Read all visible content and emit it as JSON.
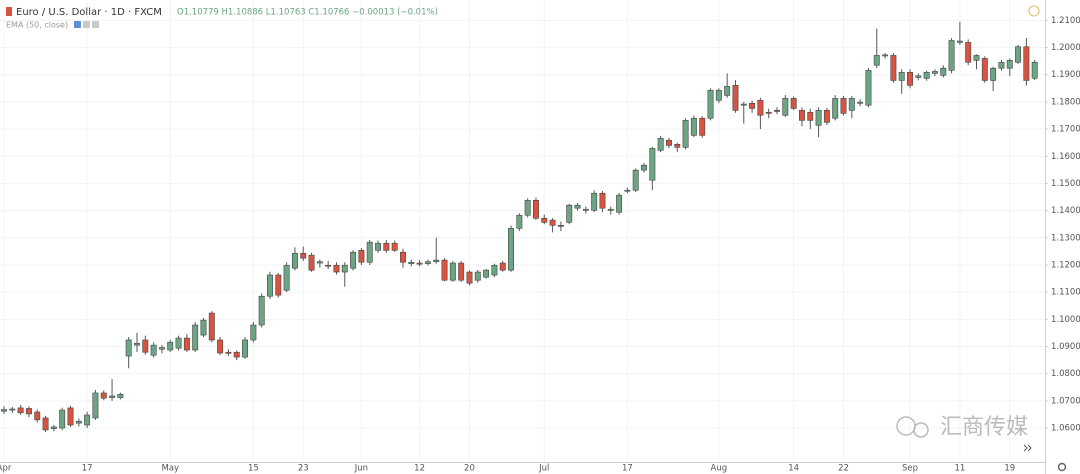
{
  "chart_data": {
    "type": "candlestick",
    "title": "Euro / U.S. Dollar · 1D · FXCM",
    "readout": "O1.10779 H1.10886 L1.10763 C1.10766 −0.00013 (−0.01%)",
    "indicator": "EMA (50, close)",
    "watermark": "汇商传媒",
    "up_color": "#6ba583",
    "down_color": "#d75442",
    "grid": true,
    "ylim": [
      1.0475,
      1.2175
    ],
    "yticks": [
      {
        "value": 1.06,
        "label": "1.06000"
      },
      {
        "value": 1.07,
        "label": "1.07000"
      },
      {
        "value": 1.08,
        "label": "1.08000"
      },
      {
        "value": 1.09,
        "label": "1.09000"
      },
      {
        "value": 1.1,
        "label": "1.10000"
      },
      {
        "value": 1.11,
        "label": "1.11000"
      },
      {
        "value": 1.12,
        "label": "1.12000"
      },
      {
        "value": 1.13,
        "label": "1.13000"
      },
      {
        "value": 1.14,
        "label": "1.14000"
      },
      {
        "value": 1.15,
        "label": "1.15000"
      },
      {
        "value": 1.16,
        "label": "1.16000"
      },
      {
        "value": 1.17,
        "label": "1.17000"
      },
      {
        "value": 1.18,
        "label": "1.18000"
      },
      {
        "value": 1.19,
        "label": "1.19000"
      },
      {
        "value": 1.2,
        "label": "1.20000"
      },
      {
        "value": 1.21,
        "label": "1.21000"
      }
    ],
    "categories": [
      "Apr",
      null,
      null,
      null,
      null,
      null,
      null,
      null,
      null,
      null,
      "17",
      null,
      null,
      null,
      null,
      null,
      null,
      null,
      null,
      null,
      "May",
      null,
      null,
      null,
      null,
      null,
      null,
      null,
      null,
      null,
      "15",
      null,
      null,
      null,
      null,
      null,
      "23",
      null,
      null,
      null,
      null,
      null,
      null,
      "Jun",
      null,
      null,
      null,
      null,
      null,
      null,
      "12",
      null,
      null,
      null,
      null,
      null,
      "20",
      null,
      null,
      null,
      null,
      null,
      null,
      null,
      null,
      "Jul",
      null,
      null,
      null,
      null,
      null,
      null,
      null,
      null,
      null,
      "17",
      null,
      null,
      null,
      null,
      null,
      null,
      null,
      null,
      null,
      null,
      "Aug",
      null,
      null,
      null,
      null,
      null,
      null,
      null,
      null,
      "14",
      null,
      null,
      null,
      null,
      null,
      "22",
      null,
      null,
      null,
      null,
      null,
      null,
      null,
      "Sep",
      null,
      null,
      null,
      null,
      null,
      "11",
      null,
      null,
      null,
      null,
      null,
      "19",
      null,
      null,
      null
    ],
    "open": [
      1.0662,
      1.0666,
      1.0674,
      1.0672,
      1.0659,
      1.0637,
      1.0598,
      1.06,
      1.0674,
      1.0618,
      1.0611,
      1.0637,
      1.0729,
      1.0712,
      1.0712,
      1.0865,
      1.0905,
      1.0924,
      1.0868,
      1.089,
      1.0887,
      1.0894,
      1.0931,
      1.0887,
      1.0942,
      1.1023,
      1.0924,
      1.0879,
      1.0879,
      1.0861,
      1.0924,
      1.0979,
      1.1085,
      1.1163,
      1.1107,
      1.1188,
      1.1243,
      1.1236,
      1.1207,
      1.1199,
      1.1199,
      1.1174,
      1.1188,
      1.1254,
      1.121,
      1.1254,
      1.128,
      1.128,
      1.1247,
      1.1205,
      1.1207,
      1.1205,
      1.1212,
      1.1218,
      1.1144,
      1.1207,
      1.1174,
      1.1144,
      1.1155,
      1.1163,
      1.1207,
      1.1181,
      1.1335,
      1.1383,
      1.1438,
      1.1372,
      1.1365,
      1.1346,
      1.1357,
      1.1409,
      1.1401,
      1.1401,
      1.1464,
      1.1401,
      1.1394,
      1.1472,
      1.1475,
      1.1549,
      1.1512,
      1.1622,
      1.1659,
      1.1644,
      1.1633,
      1.1677,
      1.174,
      1.174,
      1.1806,
      1.1824,
      1.1861,
      1.1788,
      1.1795,
      1.1806,
      1.1762,
      1.1769,
      1.1751,
      1.1813,
      1.1769,
      1.1762,
      1.1714,
      1.1769,
      1.174,
      1.1813,
      1.1769,
      1.1795,
      1.1788,
      1.1935,
      1.1969,
      1.1971,
      1.1879,
      1.1909,
      1.189,
      1.1887,
      1.1905,
      1.1898,
      1.1916,
      1.2019,
      1.2019,
      1.1953,
      1.196,
      1.1879,
      1.1924,
      1.1924,
      1.1946,
      1.2003,
      1.1887
    ],
    "high": [
      1.068,
      1.0678,
      1.0685,
      1.068,
      1.0668,
      1.0645,
      1.0612,
      1.0675,
      1.0682,
      1.0635,
      1.066,
      1.074,
      1.0738,
      1.078,
      1.073,
      1.0935,
      1.095,
      1.094,
      1.0915,
      1.0905,
      1.0925,
      1.094,
      1.0945,
      1.099,
      1.1005,
      1.103,
      1.0935,
      1.089,
      1.0885,
      1.0935,
      1.099,
      1.1095,
      1.1175,
      1.117,
      1.121,
      1.1265,
      1.1268,
      1.1245,
      1.122,
      1.1215,
      1.121,
      1.121,
      1.1255,
      1.1262,
      1.1292,
      1.129,
      1.1292,
      1.129,
      1.126,
      1.122,
      1.1218,
      1.122,
      1.13,
      1.1225,
      1.1215,
      1.1215,
      1.118,
      1.1182,
      1.1185,
      1.1205,
      1.1215,
      1.1345,
      1.139,
      1.1445,
      1.1448,
      1.1385,
      1.1372,
      1.136,
      1.1425,
      1.1428,
      1.1415,
      1.1475,
      1.1472,
      1.1415,
      1.1465,
      1.1485,
      1.1555,
      1.1575,
      1.1635,
      1.1675,
      1.1668,
      1.165,
      1.174,
      1.175,
      1.1748,
      1.185,
      1.185,
      1.1905,
      1.188,
      1.18,
      1.1805,
      1.1815,
      1.1775,
      1.178,
      1.1825,
      1.182,
      1.178,
      1.1775,
      1.178,
      1.1778,
      1.1825,
      1.1822,
      1.1822,
      1.181,
      1.1925,
      1.207,
      1.198,
      1.198,
      1.192,
      1.192,
      1.1905,
      1.1915,
      1.192,
      1.1935,
      1.2035,
      1.2095,
      1.203,
      1.1975,
      1.1968,
      1.193,
      1.1955,
      1.196,
      1.201,
      1.2035,
      1.1955
    ],
    "low": [
      1.0652,
      1.0655,
      1.0648,
      1.064,
      1.062,
      1.0585,
      1.0588,
      1.0592,
      1.0604,
      1.0605,
      1.06,
      1.063,
      1.0702,
      1.07,
      1.0705,
      1.082,
      1.088,
      1.087,
      1.086,
      1.0875,
      1.088,
      1.0885,
      1.088,
      1.088,
      1.0935,
      1.0915,
      1.0868,
      1.0865,
      1.085,
      1.0855,
      1.0915,
      1.097,
      1.1075,
      1.108,
      1.11,
      1.118,
      1.1215,
      1.1175,
      1.119,
      1.1185,
      1.1165,
      1.112,
      1.118,
      1.12,
      1.12,
      1.1245,
      1.1245,
      1.1248,
      1.119,
      1.1195,
      1.1195,
      1.1198,
      1.1205,
      1.114,
      1.1138,
      1.1138,
      1.1125,
      1.1135,
      1.115,
      1.1155,
      1.1175,
      1.1175,
      1.1325,
      1.1375,
      1.1365,
      1.135,
      1.132,
      1.1325,
      1.135,
      1.14,
      1.139,
      1.1395,
      1.1395,
      1.1385,
      1.1385,
      1.1465,
      1.1468,
      1.154,
      1.1475,
      1.1615,
      1.163,
      1.1615,
      1.1625,
      1.167,
      1.1668,
      1.1732,
      1.1795,
      1.1815,
      1.176,
      1.172,
      1.176,
      1.17,
      1.174,
      1.1755,
      1.1745,
      1.177,
      1.171,
      1.17,
      1.167,
      1.1715,
      1.1732,
      1.175,
      1.174,
      1.1785,
      1.178,
      1.1925,
      1.196,
      1.187,
      1.183,
      1.185,
      1.188,
      1.1878,
      1.1895,
      1.189,
      1.1905,
      1.201,
      1.1935,
      1.192,
      1.187,
      1.184,
      1.1915,
      1.1895,
      1.194,
      1.186,
      1.188
    ],
    "close": [
      1.0668,
      1.067,
      1.0656,
      1.0652,
      1.063,
      1.0593,
      1.0604,
      1.0666,
      1.0611,
      1.0625,
      1.0648,
      1.0729,
      1.071,
      1.0718,
      1.0724,
      1.0924,
      1.0912,
      1.0879,
      1.0905,
      1.0896,
      1.0916,
      1.0931,
      1.0887,
      1.0979,
      1.0997,
      1.0924,
      1.0876,
      1.0875,
      1.0861,
      1.0924,
      1.0979,
      1.1085,
      1.1163,
      1.1089,
      1.1199,
      1.1243,
      1.1225,
      1.1181,
      1.1212,
      1.1196,
      1.1174,
      1.1199,
      1.1247,
      1.121,
      1.1284,
      1.128,
      1.1254,
      1.1254,
      1.121,
      1.121,
      1.1203,
      1.1212,
      1.1218,
      1.1144,
      1.1207,
      1.1144,
      1.1133,
      1.1174,
      1.1181,
      1.1199,
      1.1181,
      1.1335,
      1.1383,
      1.1438,
      1.1372,
      1.1357,
      1.1346,
      1.1342,
      1.142,
      1.142,
      1.1405,
      1.1464,
      1.1409,
      1.1405,
      1.1457,
      1.1475,
      1.1549,
      1.1567,
      1.1629,
      1.1666,
      1.164,
      1.1633,
      1.1732,
      1.174,
      1.1677,
      1.1843,
      1.1843,
      1.1857,
      1.1769,
      1.1792,
      1.1776,
      1.1751,
      1.1758,
      1.1765,
      1.1813,
      1.1776,
      1.1732,
      1.1732,
      1.1769,
      1.1725,
      1.1813,
      1.1758,
      1.1813,
      1.1799,
      1.1916,
      1.1971,
      1.1973,
      1.1879,
      1.1909,
      1.1861,
      1.1896,
      1.1909,
      1.1912,
      1.1924,
      1.2026,
      1.2024,
      1.1946,
      1.1971,
      1.1879,
      1.1924,
      1.1946,
      1.1953,
      1.2003,
      1.1879,
      1.1946
    ]
  }
}
